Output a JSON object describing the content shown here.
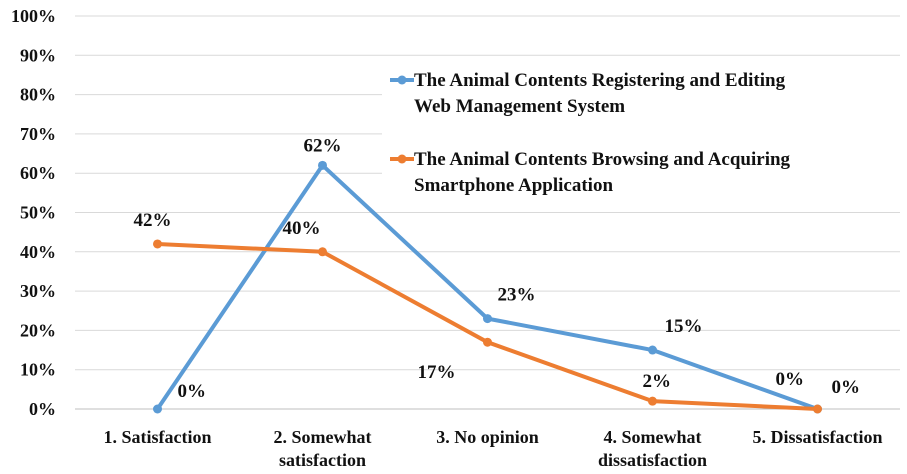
{
  "chart_data": {
    "type": "line",
    "categories": [
      "1. Satisfaction",
      "2. Somewhat satisfaction",
      "3. No opinion",
      "4. Somewhat dissatisfaction",
      "5. Dissatisfaction"
    ],
    "category_lines": [
      [
        "1. Satisfaction"
      ],
      [
        "2. Somewhat",
        "satisfaction"
      ],
      [
        "3. No opinion"
      ],
      [
        "4. Somewhat",
        "dissatisfaction"
      ],
      [
        "5. Dissatisfaction"
      ]
    ],
    "ylim": [
      0,
      100
    ],
    "yticks": [
      0,
      10,
      20,
      30,
      40,
      50,
      60,
      70,
      80,
      90,
      100
    ],
    "ytick_labels": [
      "0%",
      "10%",
      "20%",
      "30%",
      "40%",
      "50%",
      "60%",
      "70%",
      "80%",
      "90%",
      "100%"
    ],
    "grid": true,
    "legend_position": "top-right",
    "series": [
      {
        "name": "The Animal Contents Registering and Editing Web Management System",
        "name_lines": [
          "The Animal Contents Registering and Editing",
          "Web Management System"
        ],
        "color": "#5b9bd5",
        "values": [
          0,
          62,
          23,
          15,
          0
        ],
        "labels": [
          "0%",
          "62%",
          "23%",
          "15%",
          "0%"
        ]
      },
      {
        "name": "The Animal Contents Browsing and Acquiring Smartphone Application",
        "name_lines": [
          "The Animal Contents Browsing and Acquiring",
          "Smartphone Application"
        ],
        "color": "#ed7d31",
        "values": [
          42,
          40,
          17,
          2,
          0
        ],
        "labels": [
          "42%",
          "40%",
          "17%",
          "2%",
          "0%"
        ]
      }
    ]
  }
}
